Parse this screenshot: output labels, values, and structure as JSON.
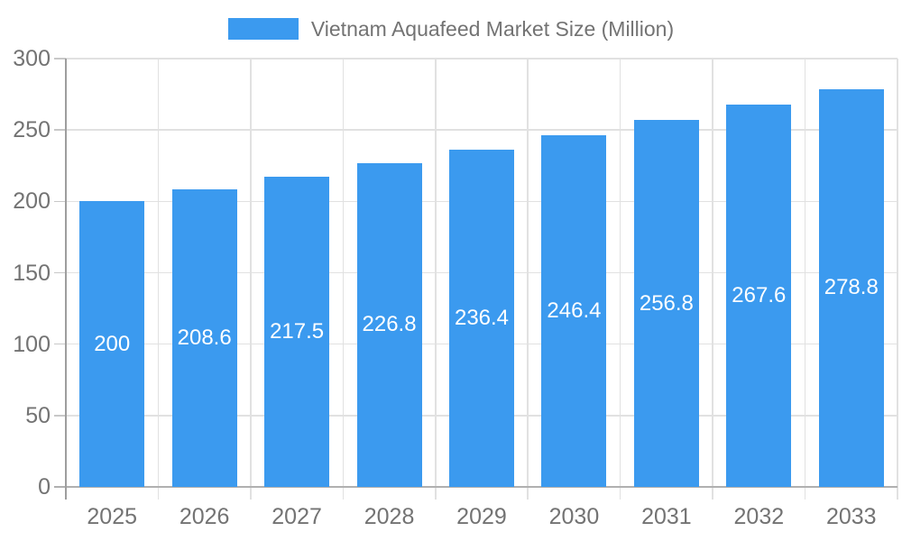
{
  "chart_data": {
    "type": "bar",
    "title": "Vietnam Aquafeed Market Size (Million)",
    "legend_entries": [
      "Vietnam Aquafeed Market Size (Million)"
    ],
    "legend_position": "top",
    "categories": [
      "2025",
      "2026",
      "2027",
      "2028",
      "2029",
      "2030",
      "2031",
      "2032",
      "2033"
    ],
    "series": [
      {
        "name": "Vietnam Aquafeed Market Size (Million)",
        "values": [
          200,
          208.6,
          217.5,
          226.8,
          236.4,
          246.4,
          256.8,
          267.6,
          278.8
        ]
      }
    ],
    "value_labels": [
      "200",
      "208.6",
      "217.5",
      "226.8",
      "236.4",
      "246.4",
      "256.8",
      "267.6",
      "278.8"
    ],
    "xlabel": "",
    "ylabel": "",
    "ylim": [
      0,
      300
    ],
    "ytick_step": 50,
    "yticks": [
      0,
      50,
      100,
      150,
      200,
      250,
      300
    ],
    "grid": true,
    "colors": {
      "bar": "#3B9AEF",
      "value_label": "#FFFFFF",
      "axis_text": "#737373",
      "legend_text": "#737373",
      "gridline": "#E1E1E1",
      "axis_line": "#9E9E9E",
      "baseline": "#B0B0B0",
      "tick": "#C8C8C8",
      "background": "#FFFFFF"
    }
  }
}
